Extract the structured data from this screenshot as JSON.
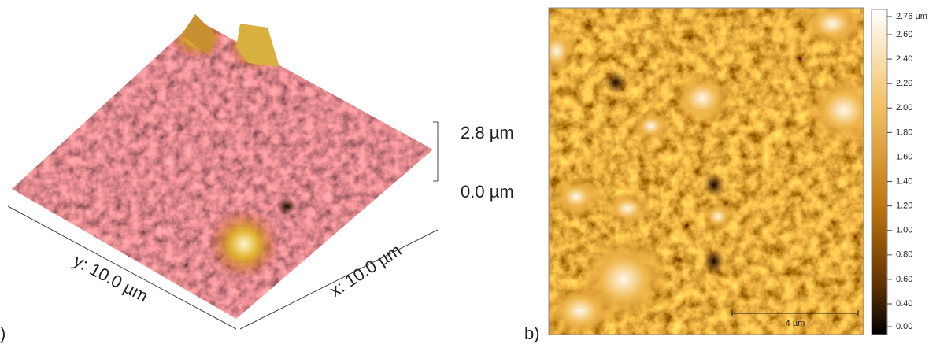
{
  "panel_a": {
    "label": ")",
    "z_top": "2.8 µm",
    "z_bottom": "0.0 µm",
    "x_axis": "x: 10.0 µm",
    "y_axis": "y: 10.0 µm"
  },
  "panel_b": {
    "label": "b)",
    "colorbar": {
      "max_label": "2.76 µm",
      "ticks": [
        "2.60",
        "2.40",
        "2.20",
        "2.00",
        "1.80",
        "1.60",
        "1.40",
        "1.20",
        "1.00",
        "0.80",
        "0.60",
        "0.40",
        "0.00"
      ]
    },
    "scale_bar": "4 µm"
  }
}
